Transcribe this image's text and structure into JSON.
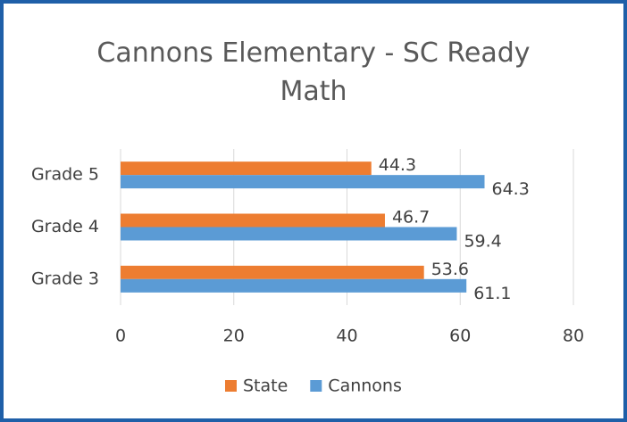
{
  "chart_data": {
    "type": "bar",
    "orientation": "horizontal",
    "title": "Cannons Elementary - SC Ready Math",
    "categories": [
      "Grade 5",
      "Grade 4",
      "Grade 3"
    ],
    "series": [
      {
        "name": "State",
        "color": "#ed7d31",
        "values": [
          44.3,
          46.7,
          53.6
        ]
      },
      {
        "name": "Cannons",
        "color": "#5b9bd5",
        "values": [
          64.3,
          59.4,
          61.1
        ]
      }
    ],
    "xlim": [
      0,
      80
    ],
    "xticks": [
      0,
      20,
      40,
      60,
      80
    ],
    "grid": true,
    "legend": "bottom"
  }
}
